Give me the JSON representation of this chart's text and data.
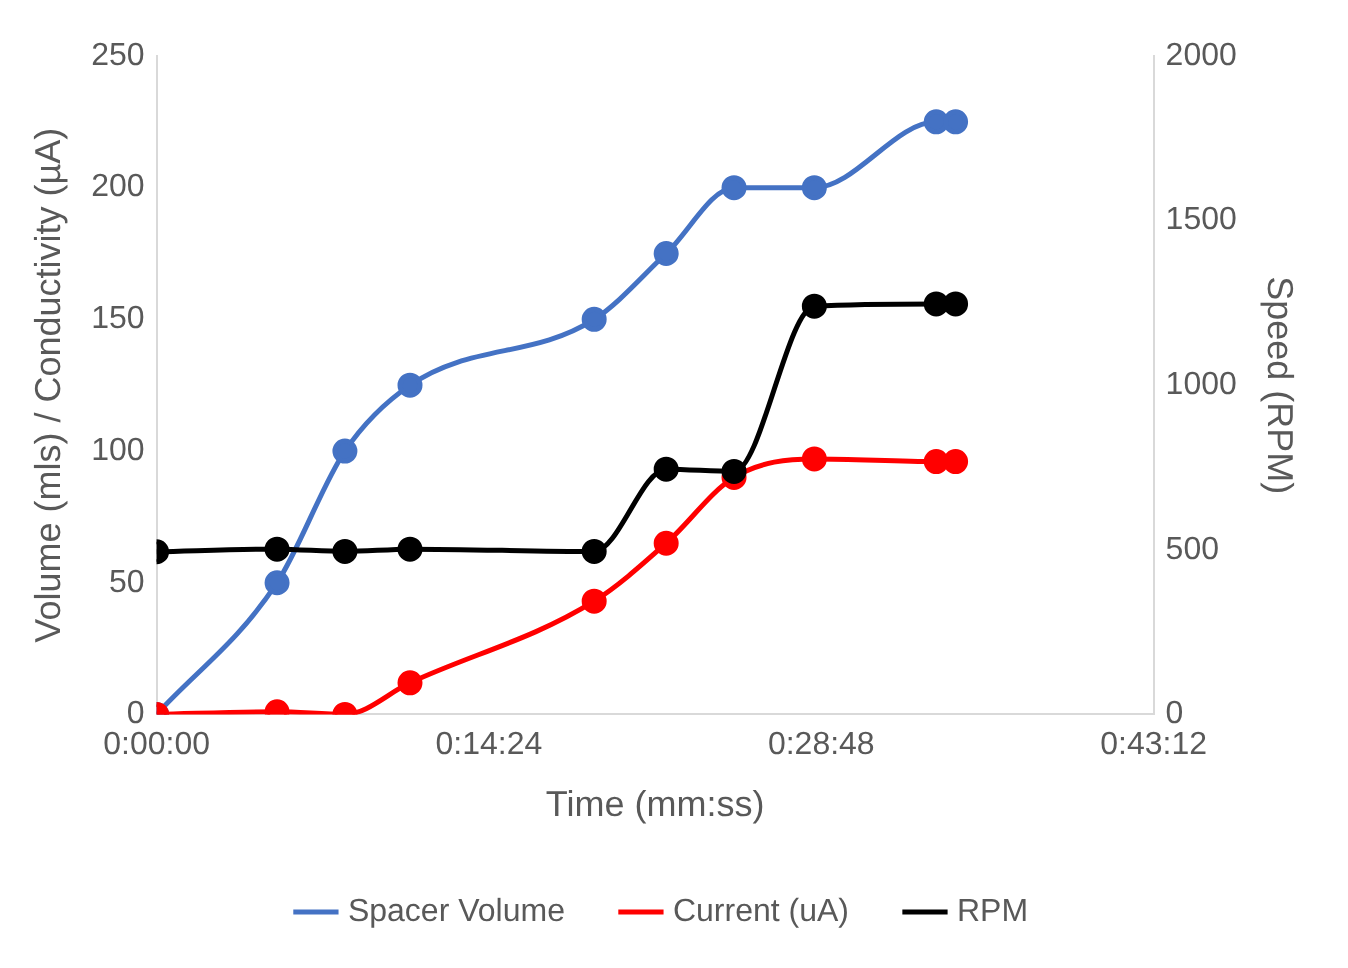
{
  "chart_data": {
    "type": "line",
    "xlabel": "Time (mm:ss)",
    "ylabel": "Volume (mls) / Conductivity (µA)",
    "y2label": "Speed (RPM)",
    "xlim": [
      0,
      0.72
    ],
    "xticks": [
      {
        "value": 0,
        "label": "0:00:00"
      },
      {
        "value": 0.24,
        "label": "0:14:24"
      },
      {
        "value": 0.48,
        "label": "0:28:48"
      },
      {
        "value": 0.72,
        "label": "0:43:12"
      }
    ],
    "ylim": [
      0,
      250
    ],
    "yticks": [
      0,
      50,
      100,
      150,
      200,
      250
    ],
    "y2lim": [
      0,
      2000
    ],
    "y2ticks": [
      0,
      500,
      1000,
      1500,
      2000
    ],
    "x": [
      0,
      0.087,
      0.136,
      0.183,
      0.316,
      0.368,
      0.417,
      0.475,
      0.563,
      0.577
    ],
    "series": [
      {
        "name": "Spacer Volume",
        "color": "#4472c4",
        "values": [
          0,
          50,
          100,
          125,
          150,
          175,
          200,
          200,
          225,
          225
        ]
      },
      {
        "name": "Current (uA)",
        "color": "#ff0000",
        "values": [
          0,
          1,
          0,
          12,
          43,
          65,
          90,
          97,
          96,
          96
        ]
      },
      {
        "name": "RPM",
        "color": "#000000",
        "axis": "y2",
        "values": [
          494,
          502,
          495,
          502,
          495,
          745,
          738,
          1240,
          1247,
          1247
        ]
      }
    ],
    "grid": false,
    "legend": "bottom",
    "marker": "circle",
    "line_style": "solid"
  }
}
